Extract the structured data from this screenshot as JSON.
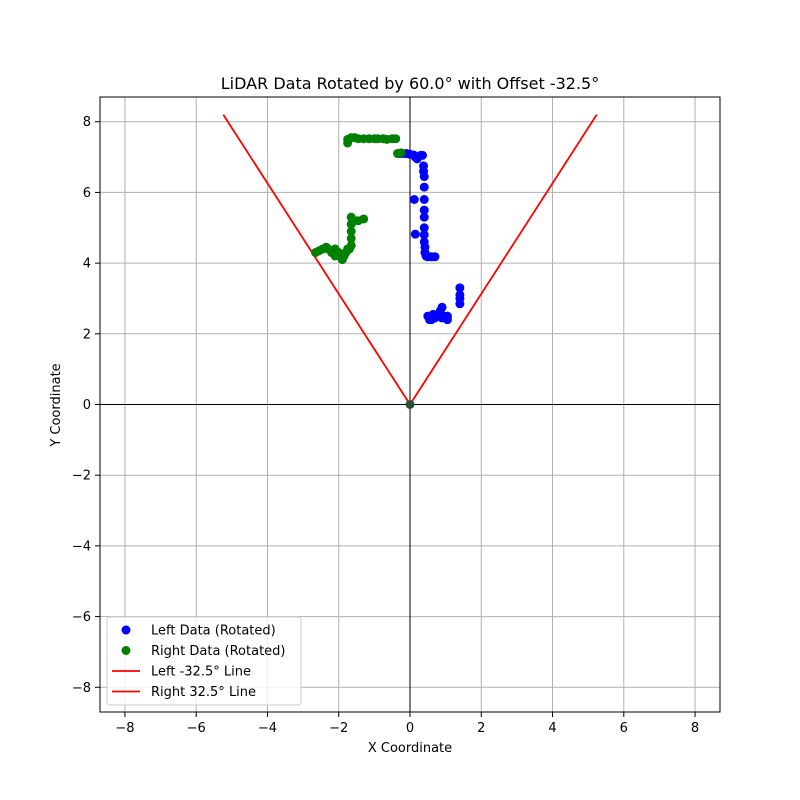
{
  "chart_data": {
    "type": "scatter",
    "title": "LiDAR Data Rotated by 60.0° with Offset -32.5°",
    "xlabel": "X Coordinate",
    "ylabel": "Y Coordinate",
    "xlim": [
      -8.7,
      8.7
    ],
    "ylim": [
      -8.7,
      8.7
    ],
    "xticks": [
      -8,
      -6,
      -4,
      -2,
      0,
      2,
      4,
      6,
      8
    ],
    "yticks": [
      -8,
      -6,
      -4,
      -2,
      0,
      2,
      4,
      6,
      8
    ],
    "grid": true,
    "legend_position": "lower-left",
    "scatter_series": [
      {
        "name": "Left Data (Rotated)",
        "color": "#0000ff",
        "points": [
          [
            -0.3,
            7.1
          ],
          [
            -0.2,
            7.1
          ],
          [
            -0.1,
            7.1
          ],
          [
            0.0,
            7.08
          ],
          [
            0.1,
            7.06
          ],
          [
            0.15,
            7.0
          ],
          [
            0.2,
            6.95
          ],
          [
            0.3,
            7.05
          ],
          [
            0.35,
            7.05
          ],
          [
            0.38,
            6.75
          ],
          [
            0.38,
            6.6
          ],
          [
            0.4,
            6.45
          ],
          [
            0.4,
            6.15
          ],
          [
            0.4,
            5.8
          ],
          [
            0.4,
            5.5
          ],
          [
            0.4,
            5.3
          ],
          [
            0.4,
            5.0
          ],
          [
            0.4,
            4.8
          ],
          [
            0.4,
            4.6
          ],
          [
            0.42,
            4.45
          ],
          [
            0.42,
            4.3
          ],
          [
            0.45,
            4.2
          ],
          [
            0.5,
            4.18
          ],
          [
            0.6,
            4.18
          ],
          [
            0.7,
            4.18
          ],
          [
            0.12,
            5.8
          ],
          [
            0.15,
            4.82
          ],
          [
            1.4,
            3.3
          ],
          [
            1.4,
            3.1
          ],
          [
            1.4,
            3.0
          ],
          [
            1.4,
            2.85
          ],
          [
            0.5,
            2.5
          ],
          [
            0.55,
            2.4
          ],
          [
            0.6,
            2.45
          ],
          [
            0.65,
            2.55
          ],
          [
            0.7,
            2.45
          ],
          [
            0.75,
            2.5
          ],
          [
            0.8,
            2.55
          ],
          [
            0.85,
            2.65
          ],
          [
            0.9,
            2.75
          ],
          [
            0.9,
            2.45
          ],
          [
            0.95,
            2.5
          ],
          [
            1.0,
            2.45
          ],
          [
            1.05,
            2.5
          ],
          [
            1.05,
            2.4
          ],
          [
            0.6,
            2.4
          ]
        ]
      },
      {
        "name": "Right Data (Rotated)",
        "color": "#008000",
        "points": [
          [
            -1.75,
            7.4
          ],
          [
            -1.75,
            7.5
          ],
          [
            -1.65,
            7.55
          ],
          [
            -1.55,
            7.55
          ],
          [
            -1.45,
            7.52
          ],
          [
            -1.3,
            7.52
          ],
          [
            -1.15,
            7.52
          ],
          [
            -1.0,
            7.52
          ],
          [
            -0.9,
            7.52
          ],
          [
            -0.75,
            7.52
          ],
          [
            -0.65,
            7.5
          ],
          [
            -0.5,
            7.52
          ],
          [
            -0.4,
            7.52
          ],
          [
            -0.35,
            7.1
          ],
          [
            -0.25,
            7.12
          ],
          [
            -1.65,
            5.3
          ],
          [
            -1.65,
            5.1
          ],
          [
            -1.65,
            4.9
          ],
          [
            -1.65,
            4.7
          ],
          [
            -1.65,
            4.5
          ],
          [
            -1.55,
            5.2
          ],
          [
            -1.45,
            5.2
          ],
          [
            -1.3,
            5.25
          ],
          [
            -1.7,
            4.4
          ],
          [
            -1.8,
            4.3
          ],
          [
            -1.85,
            4.2
          ],
          [
            -1.9,
            4.1
          ],
          [
            -2.0,
            4.3
          ],
          [
            -2.1,
            4.2
          ],
          [
            -2.1,
            4.4
          ],
          [
            -2.2,
            4.3
          ],
          [
            -2.3,
            4.4
          ],
          [
            -2.35,
            4.45
          ],
          [
            -2.45,
            4.4
          ],
          [
            -2.55,
            4.35
          ],
          [
            -2.65,
            4.3
          ],
          [
            -1.75,
            4.4
          ]
        ]
      }
    ],
    "line_series": [
      {
        "name": "Left -32.5° Line",
        "color": "#ff0000",
        "points": [
          [
            0,
            0
          ],
          [
            -5.24,
            8.2
          ]
        ]
      },
      {
        "name": "Right 32.5° Line",
        "color": "#ff0000",
        "points": [
          [
            0,
            0
          ],
          [
            5.24,
            8.2
          ]
        ]
      }
    ]
  }
}
